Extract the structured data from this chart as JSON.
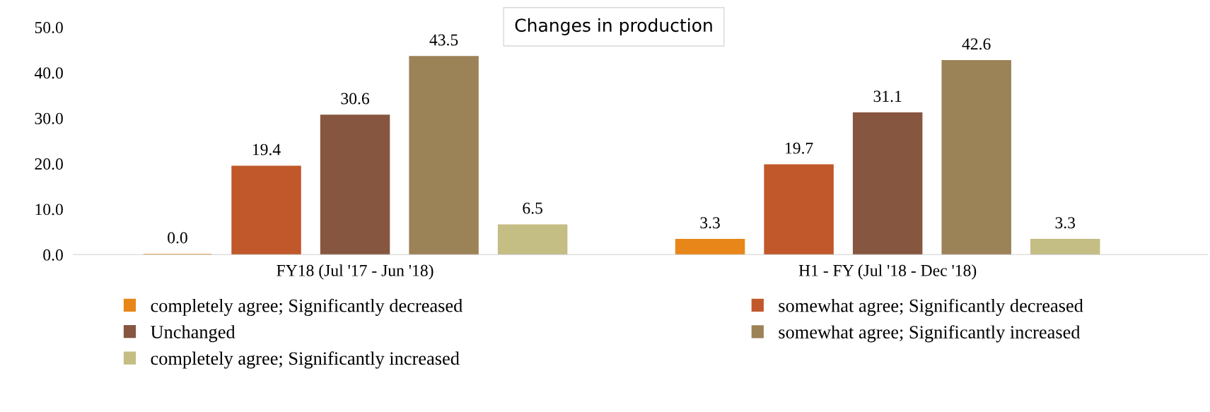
{
  "chart_data": {
    "type": "bar",
    "title": "Changes in production",
    "categories": [
      "FY18 (Jul '17 - Jun '18)",
      "H1 - FY (Jul '18 - Dec '18)"
    ],
    "series": [
      {
        "name": "completely agree; Significantly decreased",
        "color": "#e8861a",
        "values": [
          0.0,
          3.3
        ],
        "value_labels": [
          "0.0",
          "3.3"
        ]
      },
      {
        "name": "somewhat agree; Significantly decreased",
        "color": "#c0582b",
        "values": [
          19.4,
          19.7
        ],
        "value_labels": [
          "19.4",
          "19.7"
        ]
      },
      {
        "name": "Unchanged",
        "color": "#875640",
        "values": [
          30.6,
          31.1
        ],
        "value_labels": [
          "30.6",
          "31.1"
        ]
      },
      {
        "name": "somewhat agree; Significantly increased",
        "color": "#9c8257",
        "values": [
          43.5,
          42.6
        ],
        "value_labels": [
          "43.5",
          "42.6"
        ]
      },
      {
        "name": "completely agree; Significantly increased",
        "color": "#c4bd84",
        "values": [
          6.5,
          3.3
        ],
        "value_labels": [
          "6.5",
          "3.3"
        ]
      }
    ],
    "ylim": [
      0,
      50
    ],
    "yticks": [
      {
        "value": 0,
        "label": "0.0"
      },
      {
        "value": 10,
        "label": "10.0"
      },
      {
        "value": 20,
        "label": "20.0"
      },
      {
        "value": 30,
        "label": "30.0"
      },
      {
        "value": 40,
        "label": "40.0"
      },
      {
        "value": 50,
        "label": "50.0"
      }
    ],
    "grid": false,
    "legend": "bottom"
  }
}
